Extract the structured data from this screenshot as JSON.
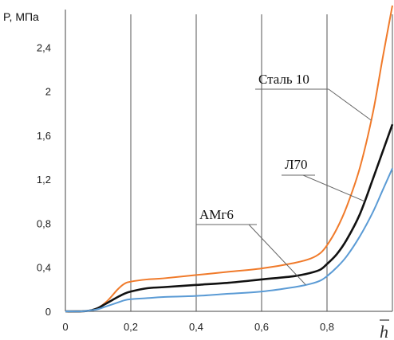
{
  "chart_data": {
    "type": "line",
    "ylabel": "P, МПа",
    "xlabel": "h",
    "xlim": [
      0,
      1
    ],
    "ylim": [
      0,
      2.7
    ],
    "x_ticks": [
      "0",
      "0,2",
      "0,4",
      "0,6",
      "0,8"
    ],
    "y_ticks": [
      "0",
      "0,4",
      "0,8",
      "1,2",
      "1,6",
      "2",
      "2,4"
    ],
    "grid": "vertical lines only",
    "series": [
      {
        "name": "Сталь 10",
        "color": "#f07a2a",
        "x": [
          0,
          0.05,
          0.08,
          0.1,
          0.13,
          0.16,
          0.18,
          0.2,
          0.25,
          0.3,
          0.4,
          0.5,
          0.6,
          0.7,
          0.75,
          0.78,
          0.8,
          0.83,
          0.86,
          0.9,
          0.94,
          0.97,
          1.0
        ],
        "y": [
          0,
          0,
          0.01,
          0.03,
          0.1,
          0.2,
          0.25,
          0.27,
          0.29,
          0.3,
          0.33,
          0.36,
          0.39,
          0.44,
          0.48,
          0.53,
          0.6,
          0.75,
          0.95,
          1.3,
          1.8,
          2.3,
          2.78
        ]
      },
      {
        "name": "Л70",
        "color": "#111111",
        "x": [
          0,
          0.05,
          0.08,
          0.1,
          0.13,
          0.16,
          0.18,
          0.2,
          0.25,
          0.3,
          0.4,
          0.5,
          0.6,
          0.7,
          0.75,
          0.78,
          0.8,
          0.83,
          0.86,
          0.9,
          0.94,
          0.97,
          1.0
        ],
        "y": [
          0,
          0,
          0.01,
          0.03,
          0.08,
          0.13,
          0.16,
          0.18,
          0.21,
          0.22,
          0.24,
          0.26,
          0.29,
          0.32,
          0.35,
          0.38,
          0.43,
          0.52,
          0.65,
          0.88,
          1.2,
          1.45,
          1.7
        ]
      },
      {
        "name": "АМг6",
        "color": "#5b9bd5",
        "x": [
          0,
          0.05,
          0.08,
          0.1,
          0.13,
          0.16,
          0.18,
          0.2,
          0.25,
          0.3,
          0.4,
          0.5,
          0.6,
          0.7,
          0.75,
          0.78,
          0.8,
          0.83,
          0.86,
          0.9,
          0.94,
          0.97,
          1.0
        ],
        "y": [
          0,
          0,
          0.01,
          0.02,
          0.05,
          0.08,
          0.1,
          0.11,
          0.12,
          0.13,
          0.14,
          0.16,
          0.18,
          0.22,
          0.25,
          0.28,
          0.32,
          0.4,
          0.5,
          0.68,
          0.9,
          1.1,
          1.3
        ]
      }
    ]
  }
}
